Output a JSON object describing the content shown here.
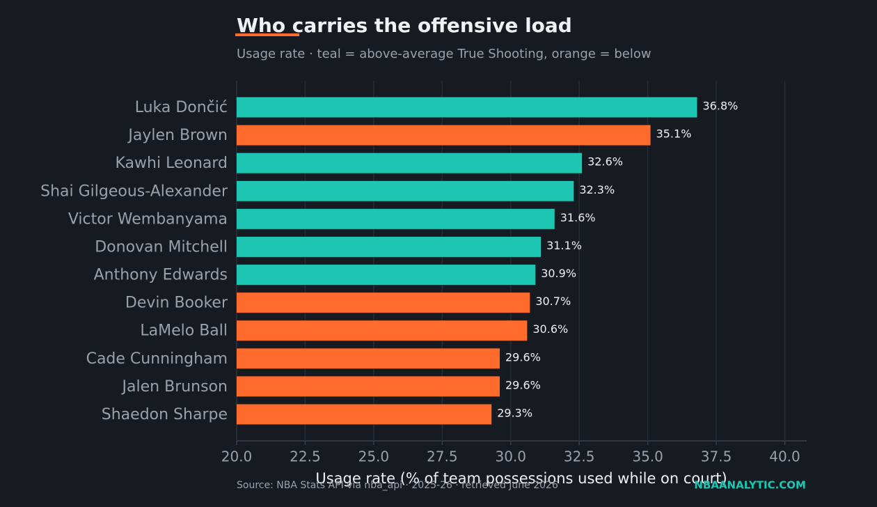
{
  "chart_data": {
    "type": "barh",
    "title": "Who carries the offensive load",
    "subtitle": "Usage rate · teal = above-average True Shooting, orange = below",
    "x_label": "Usage rate (% of team possessions used while on court)",
    "source": "Source: NBA Stats API via nba_api · 2025-26 · retrieved June 2026",
    "brand": "NBAANALYTIC.COM",
    "categories": [
      "Luka Dončić",
      "Jaylen Brown",
      "Kawhi Leonard",
      "Shai Gilgeous-Alexander",
      "Victor Wembanyama",
      "Donovan Mitchell",
      "Anthony Edwards",
      "Devin Booker",
      "LaMelo Ball",
      "Cade Cunningham",
      "Jalen Brunson",
      "Shaedon Sharpe"
    ],
    "values": [
      36.8,
      35.1,
      32.6,
      32.3,
      31.6,
      31.1,
      30.9,
      30.7,
      30.6,
      29.6,
      29.6,
      29.3
    ],
    "value_labels": [
      "36.8%",
      "35.1%",
      "32.6%",
      "32.3%",
      "31.6%",
      "31.1%",
      "30.9%",
      "30.7%",
      "30.6%",
      "29.6%",
      "29.6%",
      "29.3%"
    ],
    "colors": [
      "#1cc6b3",
      "#ff6b2c",
      "#1cc6b3",
      "#1cc6b3",
      "#1cc6b3",
      "#1cc6b3",
      "#1cc6b3",
      "#ff6b2c",
      "#ff6b2c",
      "#ff6b2c",
      "#ff6b2c",
      "#ff6b2c"
    ],
    "xlim": [
      20,
      40.8
    ],
    "xticks": [
      {
        "value": 20,
        "label": "20.0"
      },
      22.5,
      {
        "value": 25,
        "label": "25.0"
      },
      27.5,
      {
        "value": 30,
        "label": "30.0"
      },
      32.5,
      {
        "value": 35,
        "label": "35.0"
      },
      37.5,
      {
        "value": 40,
        "label": "40.0"
      }
    ],
    "grid": true
  }
}
